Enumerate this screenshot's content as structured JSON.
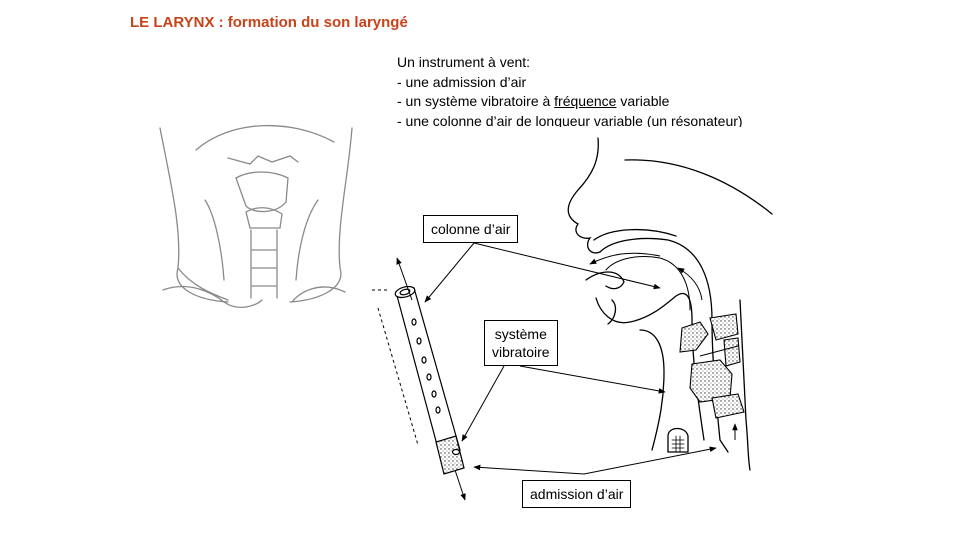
{
  "title": "LE LARYNX : formation du son laryngé",
  "intro": {
    "heading": "Un instrument  à vent:",
    "items": [
      {
        "prefix": "- une admission d’air",
        "emph": "",
        "suffix": ""
      },
      {
        "prefix": "- un système vibratoire à ",
        "emph": "fréquence",
        "suffix": " variable"
      },
      {
        "prefix": "- une colonne  d’air de longueur  variable (un résonateur)",
        "emph": "",
        "suffix": ""
      }
    ]
  },
  "labels": {
    "air_column": "colonne  d’air",
    "vibrating_system_1": "système",
    "vibrating_system_2": "vibratoire",
    "air_intake": "admission d’air"
  }
}
